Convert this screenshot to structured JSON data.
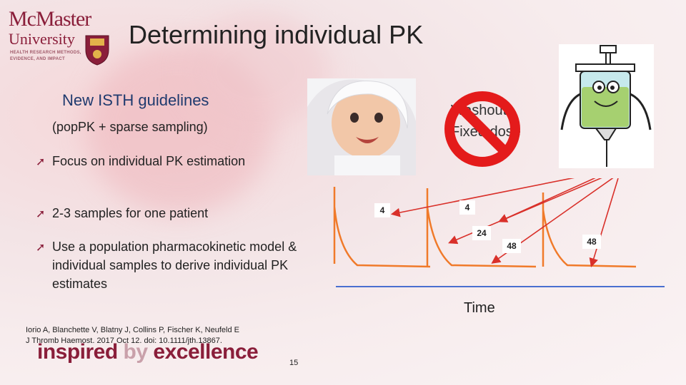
{
  "logo": {
    "line1": "McMaster",
    "line2": "University",
    "tagline": "HEALTH RESEARCH METHODS, EVIDENCE, AND IMPACT"
  },
  "slide": {
    "title": "Determining individual PK",
    "guideline_heading": "New ISTH guidelines",
    "guideline_sub": "(popPK + sparse sampling)",
    "bullets": [
      "Focus on individual PK estimation",
      "2-3 samples for one patient",
      "Use a population pharmacokinetic model & individual samples to derive individual PK estimates"
    ],
    "washout_line1": "Washout",
    "washout_line2": "Fixed dose",
    "sample_labels": [
      "4",
      "4",
      "24",
      "48",
      "48"
    ],
    "xlabel": "Time",
    "reference_line1": "Iorio A, Blanchette V, Blatny J, Collins P, Fischer K, Neufeld E",
    "reference_line2": "J Thromb Haemost. 2017 Oct 12. doi: 10.1111/jth.13867.",
    "brand_word1": "inspired",
    "brand_word2": "by",
    "brand_word3": "excellence",
    "page_number": "15"
  },
  "colors": {
    "accent": "#8a1e3a",
    "curve": "#f07a2a",
    "baseline": "#4a6fd0",
    "arrow": "#d9302a",
    "heading_blue": "#1f3a6e"
  }
}
